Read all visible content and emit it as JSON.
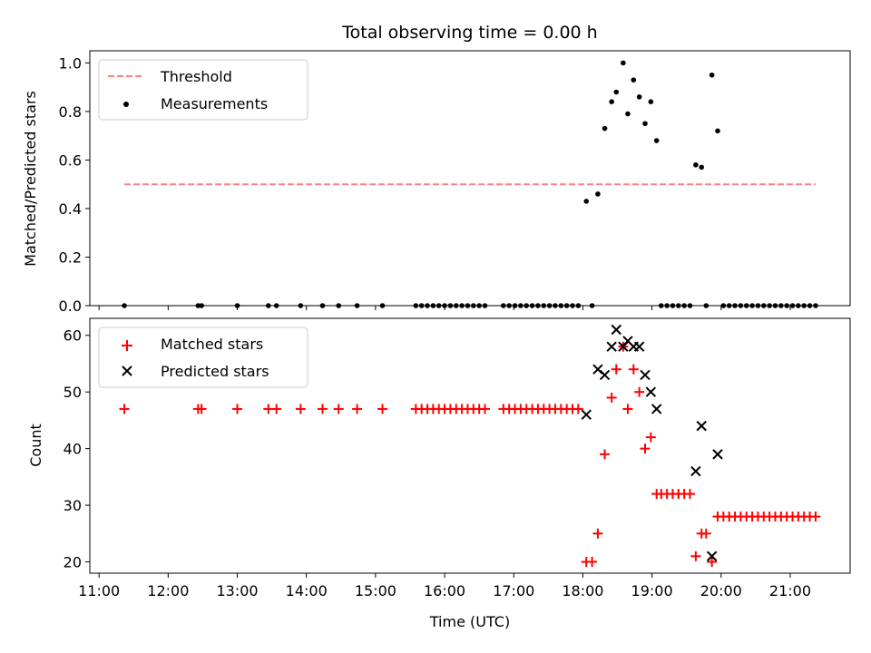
{
  "chart_data": [
    {
      "type": "scatter",
      "title": "Total observing time = 0.00 h",
      "xlabel": "",
      "ylabel": "Matched/Predicted stars",
      "xlim": [
        "10:52",
        "21:52"
      ],
      "ylim": [
        0,
        1.05
      ],
      "yticks": [
        "0.0",
        "0.2",
        "0.4",
        "0.6",
        "0.8",
        "1.0"
      ],
      "grid": false,
      "legend_position": "top-left",
      "threshold": {
        "name": "Threshold",
        "value": 0.5,
        "x_range": [
          "11:22",
          "21:22"
        ],
        "style": "dashed",
        "color": "#ff7f7f"
      },
      "series": [
        {
          "name": "Measurements",
          "color": "#000000",
          "marker": "dot",
          "points": [
            [
              "11:22",
              0
            ],
            [
              "12:26",
              0
            ],
            [
              "12:29",
              0
            ],
            [
              "13:00",
              0
            ],
            [
              "13:27",
              0
            ],
            [
              "13:34",
              0
            ],
            [
              "13:55",
              0
            ],
            [
              "14:14",
              0
            ],
            [
              "14:28",
              0
            ],
            [
              "14:44",
              0
            ],
            [
              "15:06",
              0
            ],
            [
              "15:35",
              0
            ],
            [
              "15:40",
              0
            ],
            [
              "15:45",
              0
            ],
            [
              "15:50",
              0
            ],
            [
              "15:55",
              0
            ],
            [
              "16:00",
              0
            ],
            [
              "16:05",
              0
            ],
            [
              "16:10",
              0
            ],
            [
              "16:15",
              0
            ],
            [
              "16:20",
              0
            ],
            [
              "16:25",
              0
            ],
            [
              "16:30",
              0
            ],
            [
              "16:35",
              0
            ],
            [
              "16:51",
              0
            ],
            [
              "16:56",
              0
            ],
            [
              "17:01",
              0
            ],
            [
              "17:06",
              0
            ],
            [
              "17:11",
              0
            ],
            [
              "17:16",
              0
            ],
            [
              "17:21",
              0
            ],
            [
              "17:26",
              0
            ],
            [
              "17:31",
              0
            ],
            [
              "17:36",
              0
            ],
            [
              "17:41",
              0
            ],
            [
              "17:46",
              0
            ],
            [
              "17:51",
              0
            ],
            [
              "17:56",
              0
            ],
            [
              "18:03",
              0.43
            ],
            [
              "18:08",
              0
            ],
            [
              "18:13",
              0.46
            ],
            [
              "18:19",
              0.73
            ],
            [
              "18:25",
              0.84
            ],
            [
              "18:29",
              0.88
            ],
            [
              "18:35",
              1.0
            ],
            [
              "18:39",
              0.79
            ],
            [
              "18:44",
              0.93
            ],
            [
              "18:49",
              0.86
            ],
            [
              "18:54",
              0.75
            ],
            [
              "18:59",
              0.84
            ],
            [
              "19:04",
              0.68
            ],
            [
              "19:08",
              0
            ],
            [
              "19:13",
              0
            ],
            [
              "19:18",
              0
            ],
            [
              "19:23",
              0
            ],
            [
              "19:28",
              0
            ],
            [
              "19:33",
              0
            ],
            [
              "19:38",
              0.58
            ],
            [
              "19:43",
              0.57
            ],
            [
              "19:47",
              0
            ],
            [
              "19:52",
              0.95
            ],
            [
              "19:57",
              0.72
            ],
            [
              "20:02",
              0
            ],
            [
              "20:07",
              0
            ],
            [
              "20:12",
              0
            ],
            [
              "20:17",
              0
            ],
            [
              "20:22",
              0
            ],
            [
              "20:27",
              0
            ],
            [
              "20:32",
              0
            ],
            [
              "20:37",
              0
            ],
            [
              "20:42",
              0
            ],
            [
              "20:47",
              0
            ],
            [
              "20:52",
              0
            ],
            [
              "20:57",
              0
            ],
            [
              "21:02",
              0
            ],
            [
              "21:07",
              0
            ],
            [
              "21:12",
              0
            ],
            [
              "21:17",
              0
            ],
            [
              "21:22",
              0
            ]
          ]
        }
      ]
    },
    {
      "type": "scatter",
      "title": "",
      "xlabel": "Time (UTC)",
      "ylabel": "Count",
      "xlim": [
        "10:52",
        "21:52"
      ],
      "ylim": [
        18,
        63
      ],
      "xticks": [
        "11:00",
        "12:00",
        "13:00",
        "14:00",
        "15:00",
        "16:00",
        "17:00",
        "18:00",
        "19:00",
        "20:00",
        "21:00"
      ],
      "yticks": [
        "20",
        "30",
        "40",
        "50",
        "60"
      ],
      "grid": false,
      "legend_position": "top-left",
      "series": [
        {
          "name": "Matched stars",
          "color": "#ff0000",
          "marker": "plus",
          "points": [
            [
              "11:22",
              47
            ],
            [
              "12:26",
              47
            ],
            [
              "12:29",
              47
            ],
            [
              "13:00",
              47
            ],
            [
              "13:27",
              47
            ],
            [
              "13:34",
              47
            ],
            [
              "13:55",
              47
            ],
            [
              "14:14",
              47
            ],
            [
              "14:28",
              47
            ],
            [
              "14:44",
              47
            ],
            [
              "15:06",
              47
            ],
            [
              "15:35",
              47
            ],
            [
              "15:40",
              47
            ],
            [
              "15:45",
              47
            ],
            [
              "15:50",
              47
            ],
            [
              "15:55",
              47
            ],
            [
              "16:00",
              47
            ],
            [
              "16:05",
              47
            ],
            [
              "16:10",
              47
            ],
            [
              "16:15",
              47
            ],
            [
              "16:20",
              47
            ],
            [
              "16:25",
              47
            ],
            [
              "16:30",
              47
            ],
            [
              "16:35",
              47
            ],
            [
              "16:51",
              47
            ],
            [
              "16:56",
              47
            ],
            [
              "17:01",
              47
            ],
            [
              "17:06",
              47
            ],
            [
              "17:11",
              47
            ],
            [
              "17:16",
              47
            ],
            [
              "17:21",
              47
            ],
            [
              "17:26",
              47
            ],
            [
              "17:31",
              47
            ],
            [
              "17:36",
              47
            ],
            [
              "17:41",
              47
            ],
            [
              "17:46",
              47
            ],
            [
              "17:51",
              47
            ],
            [
              "17:56",
              47
            ],
            [
              "18:03",
              20
            ],
            [
              "18:08",
              20
            ],
            [
              "18:13",
              25
            ],
            [
              "18:19",
              39
            ],
            [
              "18:25",
              49
            ],
            [
              "18:29",
              54
            ],
            [
              "18:35",
              58
            ],
            [
              "18:39",
              47
            ],
            [
              "18:44",
              54
            ],
            [
              "18:49",
              50
            ],
            [
              "18:54",
              40
            ],
            [
              "18:59",
              42
            ],
            [
              "19:04",
              32
            ],
            [
              "19:08",
              32
            ],
            [
              "19:13",
              32
            ],
            [
              "19:18",
              32
            ],
            [
              "19:23",
              32
            ],
            [
              "19:28",
              32
            ],
            [
              "19:33",
              32
            ],
            [
              "19:38",
              21
            ],
            [
              "19:43",
              25
            ],
            [
              "19:47",
              25
            ],
            [
              "19:52",
              20
            ],
            [
              "19:57",
              28
            ],
            [
              "20:02",
              28
            ],
            [
              "20:07",
              28
            ],
            [
              "20:12",
              28
            ],
            [
              "20:17",
              28
            ],
            [
              "20:22",
              28
            ],
            [
              "20:27",
              28
            ],
            [
              "20:32",
              28
            ],
            [
              "20:37",
              28
            ],
            [
              "20:42",
              28
            ],
            [
              "20:47",
              28
            ],
            [
              "20:52",
              28
            ],
            [
              "20:57",
              28
            ],
            [
              "21:02",
              28
            ],
            [
              "21:07",
              28
            ],
            [
              "21:12",
              28
            ],
            [
              "21:17",
              28
            ],
            [
              "21:22",
              28
            ]
          ]
        },
        {
          "name": "Predicted stars",
          "color": "#000000",
          "marker": "x",
          "points": [
            [
              "18:03",
              46
            ],
            [
              "18:13",
              54
            ],
            [
              "18:19",
              53
            ],
            [
              "18:25",
              58
            ],
            [
              "18:29",
              61
            ],
            [
              "18:35",
              58
            ],
            [
              "18:39",
              59
            ],
            [
              "18:44",
              58
            ],
            [
              "18:49",
              58
            ],
            [
              "18:54",
              53
            ],
            [
              "18:59",
              50
            ],
            [
              "19:04",
              47
            ],
            [
              "19:38",
              36
            ],
            [
              "19:43",
              44
            ],
            [
              "19:52",
              21
            ],
            [
              "19:57",
              39
            ]
          ]
        }
      ]
    }
  ]
}
